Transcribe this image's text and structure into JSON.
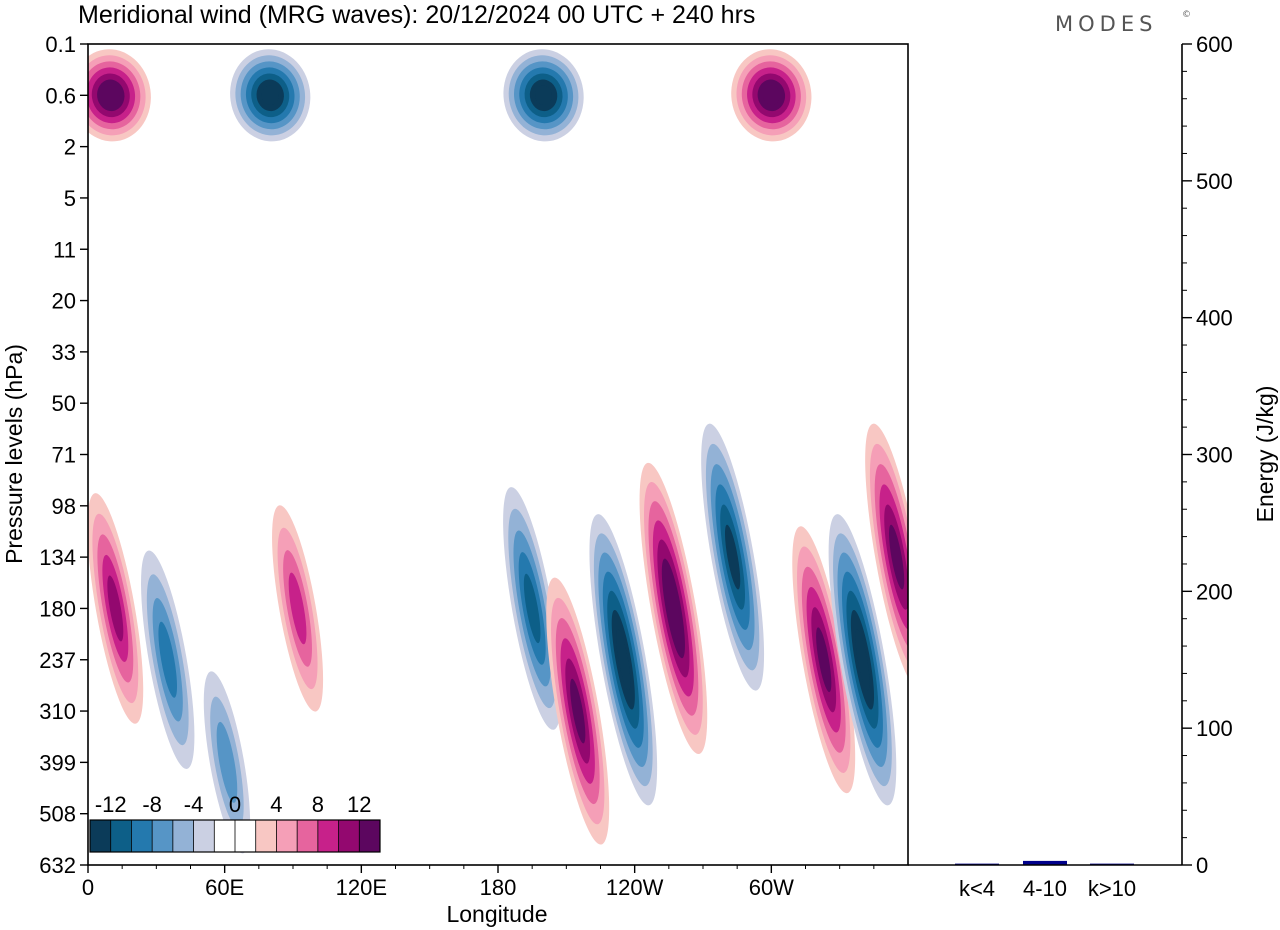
{
  "header": {
    "title": "Meridional wind (MRG waves):  20/12/2024  00 UTC  + 240 hrs",
    "brand": "MODES",
    "brand_mark": "©"
  },
  "chart_data": [
    {
      "type": "heatmap",
      "title": "Meridional wind (MRG waves):  20/12/2024  00 UTC  + 240 hrs",
      "xlabel": "Longitude",
      "ylabel": "Pressure levels (hPa)",
      "x_ticks": [
        "0",
        "60E",
        "120E",
        "180",
        "120W",
        "60W"
      ],
      "y_ticks": [
        "0.1",
        "0.6",
        "2",
        "5",
        "11",
        "20",
        "33",
        "50",
        "71",
        "98",
        "134",
        "180",
        "237",
        "310",
        "399",
        "508",
        "632"
      ],
      "colorbar": {
        "labels": [
          "-12",
          "-8",
          "-4",
          "0",
          "4",
          "8",
          "12"
        ],
        "colors": [
          "#0b3b59",
          "#0d5f88",
          "#2479ae",
          "#5695c6",
          "#93b2d6",
          "#cbd0e3",
          "#ffffff",
          "#ffffff",
          "#f8c7c3",
          "#f59fb7",
          "#e6649e",
          "#c7218a",
          "#93086f",
          "#5c065f"
        ]
      },
      "features": [
        {
          "lon": 10,
          "p": "0.6",
          "value": 14
        },
        {
          "lon": 80,
          "p": "0.6",
          "value": -14
        },
        {
          "lon": 200,
          "p": "0.6",
          "value": -14
        },
        {
          "lon": 300,
          "p": "0.6",
          "value": 14
        },
        {
          "lon": 195,
          "p": "180",
          "value": -10
        },
        {
          "lon": 215,
          "p": "310",
          "value": 12
        },
        {
          "lon": 235,
          "p": "237",
          "value": -14
        },
        {
          "lon": 257,
          "p": "180",
          "value": 14
        },
        {
          "lon": 283,
          "p": "134",
          "value": -12
        },
        {
          "lon": 323,
          "p": "237",
          "value": 12
        },
        {
          "lon": 340,
          "p": "237",
          "value": -14
        },
        {
          "lon": 355,
          "p": "134",
          "value": 12
        },
        {
          "lon": 12,
          "p": "180",
          "value": 9
        },
        {
          "lon": 35,
          "p": "237",
          "value": -8
        },
        {
          "lon": 92,
          "p": "180",
          "value": 7
        },
        {
          "lon": 61,
          "p": "399",
          "value": -5
        }
      ]
    },
    {
      "type": "bar",
      "categories": [
        "k<4",
        "4-10",
        "k>10"
      ],
      "values": [
        1,
        3,
        1
      ],
      "ylabel": "Energy (J/kg)",
      "ylim": [
        0,
        600
      ],
      "y_ticks": [
        "0",
        "100",
        "200",
        "300",
        "400",
        "500",
        "600"
      ],
      "bar_color": "#00008b"
    }
  ]
}
